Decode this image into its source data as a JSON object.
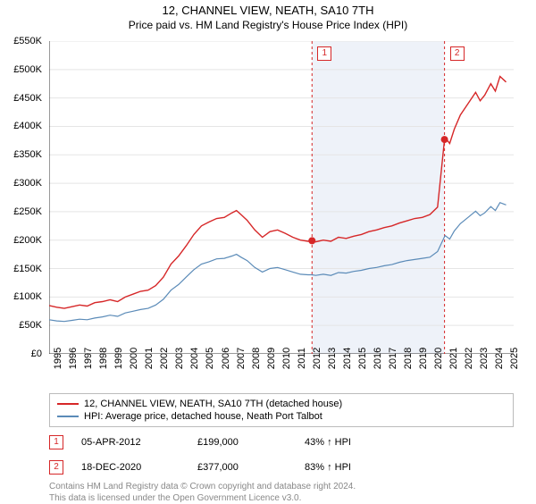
{
  "title": "12, CHANNEL VIEW, NEATH, SA10 7TH",
  "subtitle": "Price paid vs. HM Land Registry's House Price Index (HPI)",
  "chart": {
    "type": "line",
    "background_color": "#ffffff",
    "shaded_region": {
      "x_from": 2012.26,
      "x_to": 2020.96,
      "fill": "#eef2f9"
    },
    "xlim": [
      1995,
      2025.5
    ],
    "ylim": [
      0,
      550000
    ],
    "ytick_step": 50000,
    "yticks": [
      "£0",
      "£50K",
      "£100K",
      "£150K",
      "£200K",
      "£250K",
      "£300K",
      "£350K",
      "£400K",
      "£450K",
      "£500K",
      "£550K"
    ],
    "xticks": [
      "1995",
      "1996",
      "1997",
      "1998",
      "1999",
      "2000",
      "2001",
      "2002",
      "2003",
      "2004",
      "2005",
      "2006",
      "2007",
      "2008",
      "2009",
      "2010",
      "2011",
      "2012",
      "2013",
      "2014",
      "2015",
      "2016",
      "2017",
      "2018",
      "2019",
      "2020",
      "2021",
      "2022",
      "2023",
      "2024",
      "2025"
    ],
    "grid_color": "#e5e5e5",
    "axis_color": "#333333",
    "series": [
      {
        "name": "red",
        "label": "12, CHANNEL VIEW, NEATH, SA10 7TH (detached house)",
        "color": "#d62728",
        "line_width": 1.4,
        "data": [
          [
            1995,
            85000
          ],
          [
            1995.5,
            82000
          ],
          [
            1996,
            80000
          ],
          [
            1996.5,
            83000
          ],
          [
            1997,
            86000
          ],
          [
            1997.5,
            84000
          ],
          [
            1998,
            90000
          ],
          [
            1998.5,
            92000
          ],
          [
            1999,
            95000
          ],
          [
            1999.5,
            92000
          ],
          [
            2000,
            100000
          ],
          [
            2000.5,
            105000
          ],
          [
            2001,
            110000
          ],
          [
            2001.5,
            112000
          ],
          [
            2002,
            120000
          ],
          [
            2002.5,
            135000
          ],
          [
            2003,
            158000
          ],
          [
            2003.5,
            172000
          ],
          [
            2004,
            190000
          ],
          [
            2004.5,
            210000
          ],
          [
            2005,
            225000
          ],
          [
            2005.5,
            232000
          ],
          [
            2006,
            238000
          ],
          [
            2006.5,
            240000
          ],
          [
            2007,
            248000
          ],
          [
            2007.3,
            252000
          ],
          [
            2007.6,
            245000
          ],
          [
            2008,
            235000
          ],
          [
            2008.5,
            218000
          ],
          [
            2009,
            205000
          ],
          [
            2009.5,
            215000
          ],
          [
            2010,
            218000
          ],
          [
            2010.5,
            212000
          ],
          [
            2011,
            205000
          ],
          [
            2011.5,
            200000
          ],
          [
            2012,
            198000
          ],
          [
            2012.26,
            199000
          ],
          [
            2012.5,
            197000
          ],
          [
            2013,
            200000
          ],
          [
            2013.5,
            198000
          ],
          [
            2014,
            205000
          ],
          [
            2014.5,
            203000
          ],
          [
            2015,
            207000
          ],
          [
            2015.5,
            210000
          ],
          [
            2016,
            215000
          ],
          [
            2016.5,
            218000
          ],
          [
            2017,
            222000
          ],
          [
            2017.5,
            225000
          ],
          [
            2018,
            230000
          ],
          [
            2018.5,
            234000
          ],
          [
            2019,
            238000
          ],
          [
            2019.5,
            240000
          ],
          [
            2020,
            245000
          ],
          [
            2020.5,
            258000
          ],
          [
            2020.96,
            377000
          ],
          [
            2021,
            380000
          ],
          [
            2021.3,
            370000
          ],
          [
            2021.6,
            395000
          ],
          [
            2022,
            420000
          ],
          [
            2022.5,
            440000
          ],
          [
            2023,
            460000
          ],
          [
            2023.3,
            445000
          ],
          [
            2023.6,
            455000
          ],
          [
            2024,
            475000
          ],
          [
            2024.3,
            462000
          ],
          [
            2024.6,
            488000
          ],
          [
            2025,
            478000
          ]
        ]
      },
      {
        "name": "blue",
        "label": "HPI: Average price, detached house, Neath Port Talbot",
        "color": "#5b8bb8",
        "line_width": 1.2,
        "data": [
          [
            1995,
            60000
          ],
          [
            1995.5,
            58000
          ],
          [
            1996,
            57000
          ],
          [
            1996.5,
            59000
          ],
          [
            1997,
            61000
          ],
          [
            1997.5,
            60000
          ],
          [
            1998,
            63000
          ],
          [
            1998.5,
            65000
          ],
          [
            1999,
            68000
          ],
          [
            1999.5,
            66000
          ],
          [
            2000,
            72000
          ],
          [
            2000.5,
            75000
          ],
          [
            2001,
            78000
          ],
          [
            2001.5,
            80000
          ],
          [
            2002,
            86000
          ],
          [
            2002.5,
            96000
          ],
          [
            2003,
            112000
          ],
          [
            2003.5,
            122000
          ],
          [
            2004,
            135000
          ],
          [
            2004.5,
            148000
          ],
          [
            2005,
            158000
          ],
          [
            2005.5,
            162000
          ],
          [
            2006,
            167000
          ],
          [
            2006.5,
            168000
          ],
          [
            2007,
            172000
          ],
          [
            2007.3,
            175000
          ],
          [
            2007.6,
            170000
          ],
          [
            2008,
            164000
          ],
          [
            2008.5,
            152000
          ],
          [
            2009,
            144000
          ],
          [
            2009.5,
            150000
          ],
          [
            2010,
            152000
          ],
          [
            2010.5,
            148000
          ],
          [
            2011,
            144000
          ],
          [
            2011.5,
            140000
          ],
          [
            2012,
            139000
          ],
          [
            2012.26,
            139000
          ],
          [
            2012.5,
            138000
          ],
          [
            2013,
            140000
          ],
          [
            2013.5,
            138000
          ],
          [
            2014,
            143000
          ],
          [
            2014.5,
            142000
          ],
          [
            2015,
            145000
          ],
          [
            2015.5,
            147000
          ],
          [
            2016,
            150000
          ],
          [
            2016.5,
            152000
          ],
          [
            2017,
            155000
          ],
          [
            2017.5,
            157000
          ],
          [
            2018,
            161000
          ],
          [
            2018.5,
            164000
          ],
          [
            2019,
            166000
          ],
          [
            2019.5,
            168000
          ],
          [
            2020,
            170000
          ],
          [
            2020.5,
            180000
          ],
          [
            2020.96,
            206000
          ],
          [
            2021,
            208000
          ],
          [
            2021.3,
            202000
          ],
          [
            2021.6,
            216000
          ],
          [
            2022,
            229000
          ],
          [
            2022.5,
            240000
          ],
          [
            2023,
            251000
          ],
          [
            2023.3,
            243000
          ],
          [
            2023.6,
            248000
          ],
          [
            2024,
            259000
          ],
          [
            2024.3,
            252000
          ],
          [
            2024.6,
            266000
          ],
          [
            2025,
            262000
          ]
        ]
      }
    ],
    "sale_markers": [
      {
        "num": "1",
        "x": 2012.26,
        "y": 199000,
        "line_color": "#d62728",
        "box_color": "#d62728"
      },
      {
        "num": "2",
        "x": 2020.96,
        "y": 377000,
        "line_color": "#d62728",
        "box_color": "#d62728"
      }
    ],
    "marker_box_top_y": 0
  },
  "sales": [
    {
      "num": "1",
      "date": "05-APR-2012",
      "price": "£199,000",
      "pct": "43% ↑ HPI",
      "color": "#d62728"
    },
    {
      "num": "2",
      "date": "18-DEC-2020",
      "price": "£377,000",
      "pct": "83% ↑ HPI",
      "color": "#d62728"
    }
  ],
  "footer1": "Contains HM Land Registry data © Crown copyright and database right 2024.",
  "footer2": "This data is licensed under the Open Government Licence v3.0."
}
